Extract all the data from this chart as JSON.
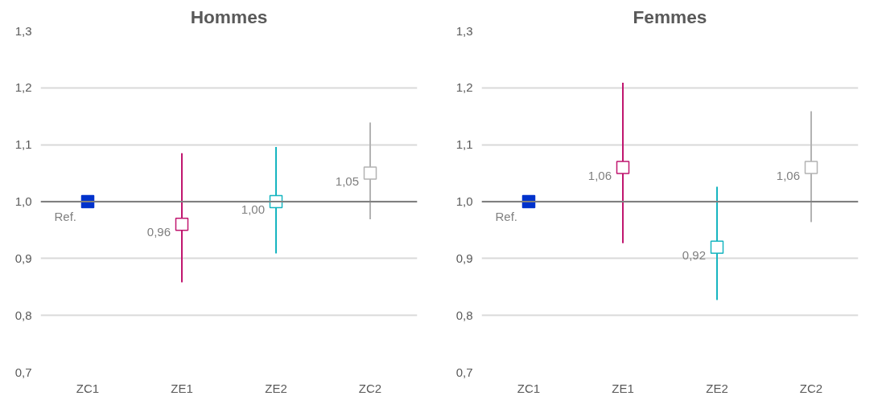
{
  "chart_data": [
    {
      "type": "scatter",
      "title": "Hommes",
      "categories": [
        "ZC1",
        "ZE1",
        "ZE2",
        "ZC2"
      ],
      "values": [
        1.0,
        0.96,
        1.0,
        1.05
      ],
      "errors": [
        null,
        [
          0.858,
          1.085
        ],
        [
          0.909,
          1.096
        ],
        [
          0.969,
          1.139
        ]
      ],
      "colors": [
        "#0033cc",
        "#c0166f",
        "#17b5c0",
        "#b3b3b3"
      ],
      "value_labels": [
        "Ref.",
        "0,96",
        "1,00",
        "1,05"
      ],
      "marker": "square",
      "ylim": [
        0.7,
        1.3
      ],
      "yticks": [
        {
          "value": 0.7,
          "label": "0,7"
        },
        {
          "value": 0.8,
          "label": "0,8"
        },
        {
          "value": 0.9,
          "label": "0,9"
        },
        {
          "value": 1.0,
          "label": "1,0"
        },
        {
          "value": 1.1,
          "label": "1,1"
        },
        {
          "value": 1.2,
          "label": "1,2"
        },
        {
          "value": 1.3,
          "label": "1,3"
        }
      ],
      "grid": "y",
      "ref_lines": [
        {
          "axis": "y",
          "value": 1.0,
          "color": "#808080"
        }
      ]
    },
    {
      "type": "scatter",
      "title": "Femmes",
      "categories": [
        "ZC1",
        "ZE1",
        "ZE2",
        "ZC2"
      ],
      "values": [
        1.0,
        1.06,
        0.92,
        1.06
      ],
      "errors": [
        null,
        [
          0.927,
          1.209
        ],
        [
          0.827,
          1.026
        ],
        [
          0.964,
          1.159
        ]
      ],
      "colors": [
        "#0033cc",
        "#c0166f",
        "#17b5c0",
        "#b3b3b3"
      ],
      "value_labels": [
        "Ref.",
        "1,06",
        "0,92",
        "1,06"
      ],
      "marker": "square",
      "ylim": [
        0.7,
        1.3
      ],
      "yticks": [
        {
          "value": 0.7,
          "label": "0,7"
        },
        {
          "value": 0.8,
          "label": "0,8"
        },
        {
          "value": 0.9,
          "label": "0,9"
        },
        {
          "value": 1.0,
          "label": "1,0"
        },
        {
          "value": 1.1,
          "label": "1,1"
        },
        {
          "value": 1.2,
          "label": "1,2"
        },
        {
          "value": 1.3,
          "label": "1,3"
        }
      ],
      "grid": "y",
      "ref_lines": [
        {
          "axis": "y",
          "value": 1.0,
          "color": "#808080"
        }
      ]
    }
  ]
}
